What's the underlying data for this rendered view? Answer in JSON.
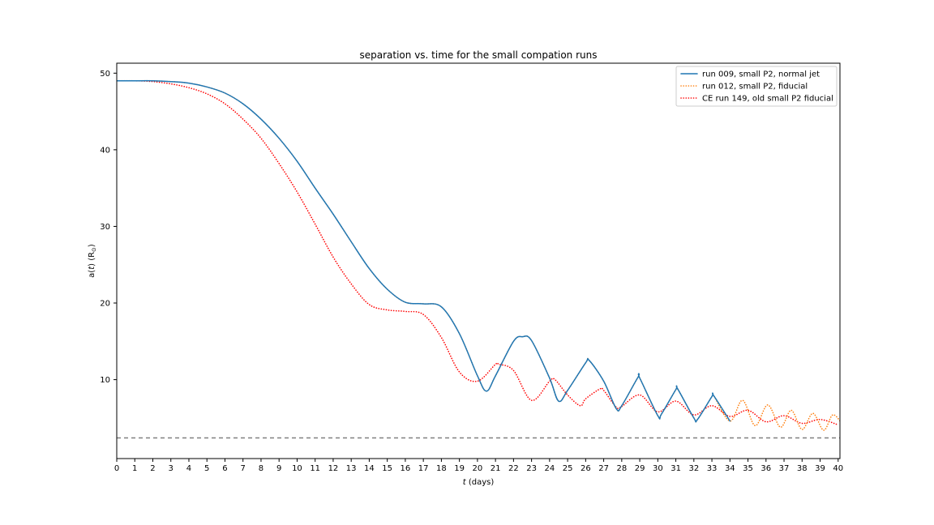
{
  "chart_data": {
    "type": "line",
    "title": "separation vs. time for the small compation runs",
    "xlabel_var": "t",
    "xlabel_unit": " (days)",
    "ylabel_prefix": "a(",
    "ylabel_var": "t",
    "ylabel_suffix": ") (R",
    "ylabel_sub": "⊙",
    "ylabel_close": ")",
    "xlim": [
      0,
      40.1
    ],
    "ylim": [
      -0.3,
      51.3
    ],
    "xticks": [
      0,
      1,
      2,
      3,
      4,
      5,
      6,
      7,
      8,
      9,
      10,
      11,
      12,
      13,
      14,
      15,
      16,
      17,
      18,
      19,
      20,
      21,
      22,
      23,
      24,
      25,
      26,
      27,
      28,
      29,
      30,
      31,
      32,
      33,
      34,
      35,
      36,
      37,
      38,
      39,
      40
    ],
    "yticks": [
      10,
      20,
      30,
      40,
      50
    ],
    "grid": false,
    "legend_position": "top-right",
    "reference_line": {
      "y": 2.4,
      "style": "dashed",
      "color": "#808080"
    },
    "series": [
      {
        "name": "run 009, small P2, normal jet",
        "style": "solid",
        "color": "#1f77b4",
        "x": [
          0,
          1,
          2,
          3,
          4,
          5,
          6,
          7,
          8,
          9,
          10,
          11,
          12,
          13,
          14,
          15,
          16,
          17,
          18,
          19,
          20,
          20.5,
          21,
          22,
          22.5,
          23,
          24,
          24.5,
          25,
          26,
          26.2,
          27,
          27.7,
          28,
          28.9,
          29,
          30,
          30.2,
          31,
          31.1,
          32,
          32.2,
          33,
          33.1,
          34
        ],
        "y": [
          49,
          49,
          49,
          48.9,
          48.7,
          48.2,
          47.4,
          46,
          44,
          41.5,
          38.5,
          35,
          31.6,
          28,
          24.5,
          21.8,
          20.1,
          19.9,
          19.5,
          16,
          10.5,
          8.5,
          10.5,
          15,
          15.6,
          15.1,
          10.2,
          7.2,
          8.6,
          12.2,
          12.5,
          9.8,
          6.2,
          6.6,
          10.3,
          10.2,
          5.3,
          5.5,
          8.7,
          8.8,
          5,
          4.8,
          7.8,
          7.9,
          4.6
        ]
      },
      {
        "name": "run 012, small P2, fiducial",
        "style": "dotted",
        "color": "#ff7f0e",
        "x": [
          0,
          1,
          2,
          3,
          4,
          5,
          6,
          7,
          8,
          9,
          10,
          11,
          12,
          13,
          14,
          15,
          16,
          17,
          18,
          19,
          20,
          20.5,
          21,
          22,
          22.5,
          23,
          24,
          24.5,
          25,
          26,
          26.2,
          27,
          27.7,
          28,
          28.9,
          29,
          30,
          30.2,
          31,
          31.1,
          32,
          32.2,
          33,
          33.1,
          34,
          34.7,
          35.4,
          36.1,
          36.8,
          37.4,
          38,
          38.6,
          39.2,
          39.7,
          40.2
        ],
        "y": [
          49,
          49,
          49,
          48.9,
          48.7,
          48.2,
          47.4,
          46,
          44,
          41.5,
          38.5,
          35,
          31.6,
          28,
          24.5,
          21.8,
          20.1,
          19.9,
          19.5,
          16,
          10.5,
          8.5,
          10.5,
          15,
          15.6,
          15.1,
          10.2,
          7.2,
          8.6,
          12.2,
          12.5,
          9.8,
          6.2,
          6.6,
          10.3,
          10.2,
          5.3,
          5.5,
          8.7,
          8.8,
          5,
          4.8,
          7.8,
          7.9,
          4.6,
          7.3,
          4,
          6.7,
          3.8,
          6,
          3.5,
          5.6,
          3.4,
          5.4,
          4.3
        ]
      },
      {
        "name": "CE run 149, old small P2 fiducial",
        "style": "dotted",
        "color": "#ff0000",
        "x": [
          0,
          1,
          2,
          3,
          4,
          5,
          6,
          7,
          8,
          9,
          10,
          11,
          12,
          13,
          14,
          15,
          16,
          17,
          18,
          19,
          20,
          21,
          21.2,
          22,
          23,
          24,
          24.3,
          25,
          25.7,
          26,
          26.8,
          27,
          27.7,
          28,
          29,
          30,
          31,
          32,
          33,
          34,
          35,
          36,
          37,
          38,
          39,
          40
        ],
        "y": [
          49,
          49,
          48.9,
          48.6,
          48.1,
          47.3,
          46,
          44,
          41.5,
          38.2,
          34.5,
          30.3,
          26,
          22.5,
          19.8,
          19.1,
          18.9,
          18.5,
          15.5,
          11,
          9.8,
          12,
          12,
          11.2,
          7.3,
          9.8,
          10,
          8,
          6.6,
          7.5,
          8.8,
          8.6,
          6.4,
          6.5,
          8,
          5.8,
          7.2,
          5.4,
          6.6,
          5.2,
          6,
          4.5,
          5.3,
          4.3,
          4.8,
          4.1
        ]
      }
    ]
  }
}
